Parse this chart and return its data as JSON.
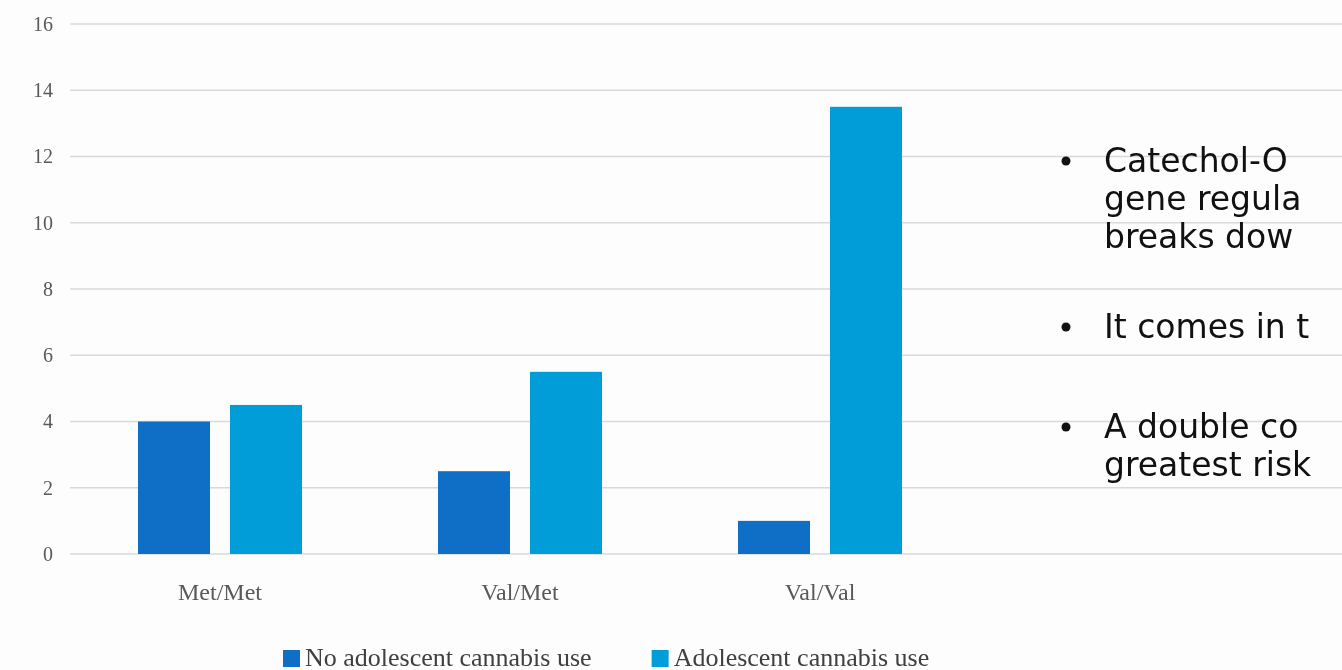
{
  "chart_data": {
    "type": "bar",
    "categories": [
      "Met/Met",
      "Val/Met",
      "Val/Val"
    ],
    "series": [
      {
        "name": "No adolescent cannabis use",
        "color": "#0f6fc6",
        "values": [
          4,
          2.5,
          1
        ]
      },
      {
        "name": "Adolescent cannabis use",
        "color": "#009dd9",
        "values": [
          4.5,
          5.5,
          13.5
        ]
      }
    ],
    "ylim": [
      0,
      16
    ],
    "yticks": [
      0,
      2,
      4,
      6,
      8,
      10,
      12,
      14,
      16
    ],
    "grid": "y",
    "legend": "bottom",
    "annotations": [
      "Catechol-O",
      "gene regula",
      "breaks dow",
      "It comes in t",
      "A double co",
      "greatest risk"
    ]
  }
}
